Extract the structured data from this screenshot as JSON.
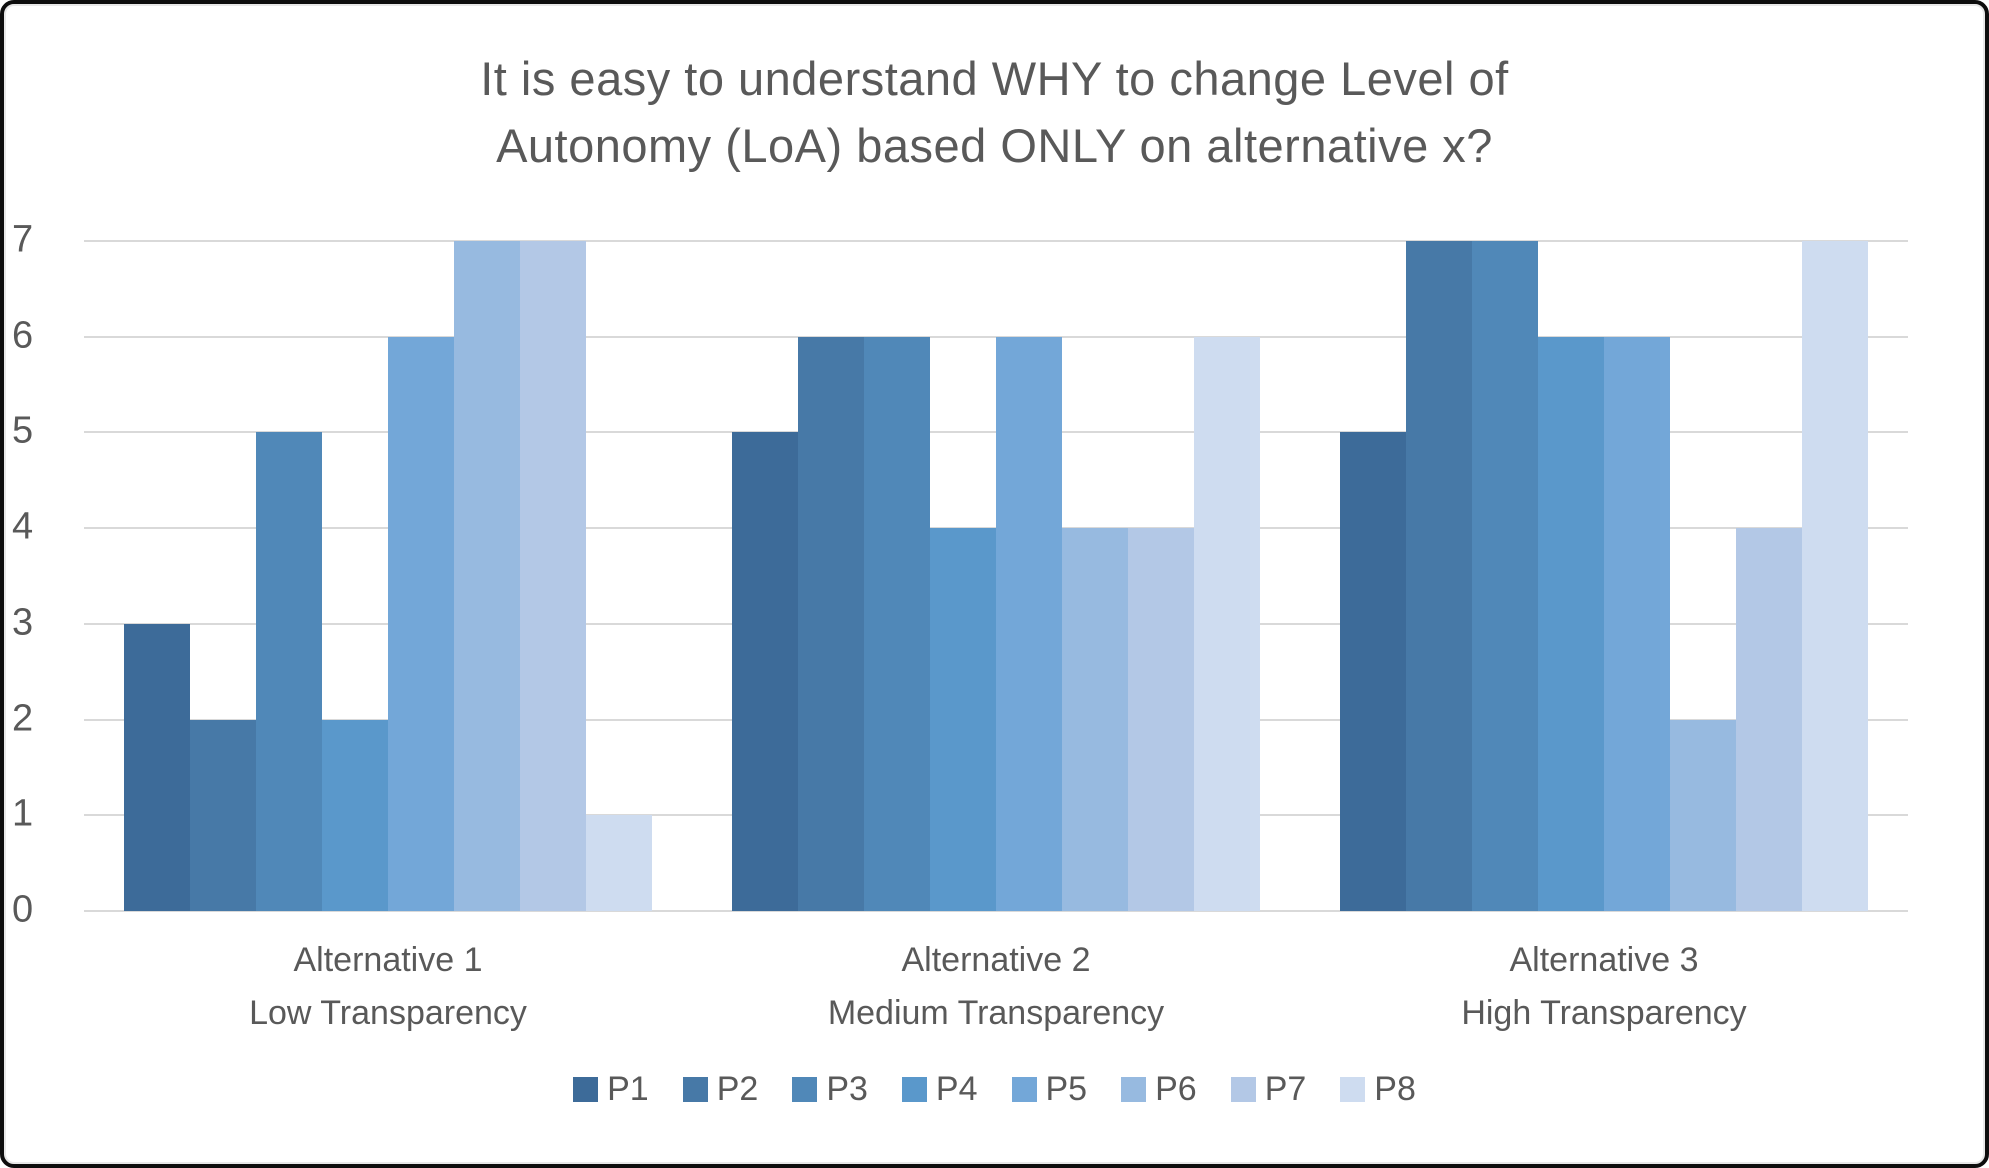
{
  "chart_data": {
    "type": "bar",
    "title_lines": [
      "It is easy to understand WHY to change Level of",
      "Autonomy (LoA) based ONLY on alternative x?"
    ],
    "categories": [
      {
        "line1": "Alternative 1",
        "line2": "Low Transparency"
      },
      {
        "line1": "Alternative 2",
        "line2": "Medium Transparency"
      },
      {
        "line1": "Alternative 3",
        "line2": "High Transparency"
      }
    ],
    "series": [
      {
        "name": "P1",
        "color": "#3d6b99",
        "values": [
          3,
          5,
          5
        ]
      },
      {
        "name": "P2",
        "color": "#4779a7",
        "values": [
          2,
          6,
          7
        ]
      },
      {
        "name": "P3",
        "color": "#5088b8",
        "values": [
          5,
          6,
          7
        ]
      },
      {
        "name": "P4",
        "color": "#5a98cb",
        "values": [
          2,
          4,
          6
        ]
      },
      {
        "name": "P5",
        "color": "#73a7d8",
        "values": [
          6,
          6,
          6
        ]
      },
      {
        "name": "P6",
        "color": "#97bae0",
        "values": [
          7,
          4,
          2
        ]
      },
      {
        "name": "P7",
        "color": "#b3c8e6",
        "values": [
          7,
          4,
          4
        ]
      },
      {
        "name": "P8",
        "color": "#cedcf0",
        "values": [
          1,
          6,
          7
        ]
      }
    ],
    "ylim": [
      0,
      7
    ],
    "yticks": [
      0,
      1,
      2,
      3,
      4,
      5,
      6,
      7
    ],
    "grid": "horizontal",
    "gridline_color": "#d9d9d9",
    "text_color": "#595959",
    "legend_position": "bottom"
  }
}
